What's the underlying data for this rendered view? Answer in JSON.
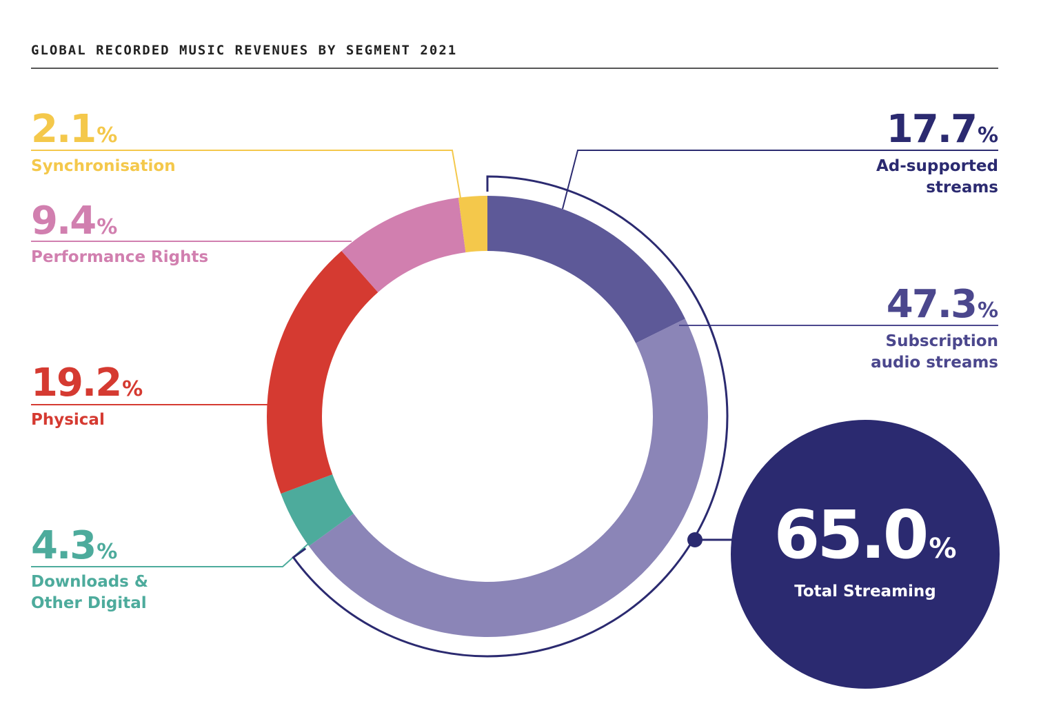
{
  "chart_data": {
    "type": "pie",
    "title": "GLOBAL RECORDED MUSIC REVENUES BY SEGMENT 2021",
    "unit": "%",
    "slices": [
      {
        "label": "Ad-supported streams",
        "value": 17.7,
        "value_text": "17.7",
        "color": "#5d5998",
        "text_color": "#2b2a70"
      },
      {
        "label": "Subscription audio streams",
        "value": 47.3,
        "value_text": "47.3",
        "color": "#8b85b7",
        "text_color": "#4b478d"
      },
      {
        "label": "Downloads & Other Digital",
        "value": 4.3,
        "value_text": "4.3",
        "color": "#4dab9c",
        "text_color": "#4dab9c"
      },
      {
        "label": "Physical",
        "value": 19.2,
        "value_text": "19.2",
        "color": "#d53a31",
        "text_color": "#d53a31"
      },
      {
        "label": "Performance Rights",
        "value": 9.4,
        "value_text": "9.4",
        "color": "#d17faf",
        "text_color": "#d17faf"
      },
      {
        "label": "Synchronisation",
        "value": 2.1,
        "value_text": "2.1",
        "color": "#f4c84b",
        "text_color": "#f4c84b"
      }
    ],
    "total_streaming": {
      "value": 65.0,
      "value_text": "65.0",
      "label": "Total Streaming",
      "color": "#2b2a70"
    }
  },
  "labels": {
    "synchronisation": {
      "value": "2.1",
      "name": "Synchronisation"
    },
    "performance_rights": {
      "value": "9.4",
      "name": "Performance Rights"
    },
    "physical": {
      "value": "19.2",
      "name": "Physical"
    },
    "downloads": {
      "value": "4.3",
      "name_line1": "Downloads &",
      "name_line2": "Other Digital"
    },
    "ad_supported": {
      "value": "17.7",
      "name_line1": "Ad-supported",
      "name_line2": "streams"
    },
    "subscription": {
      "value": "47.3",
      "name_line1": "Subscription",
      "name_line2": "audio streams"
    },
    "percent_sign": "%"
  }
}
